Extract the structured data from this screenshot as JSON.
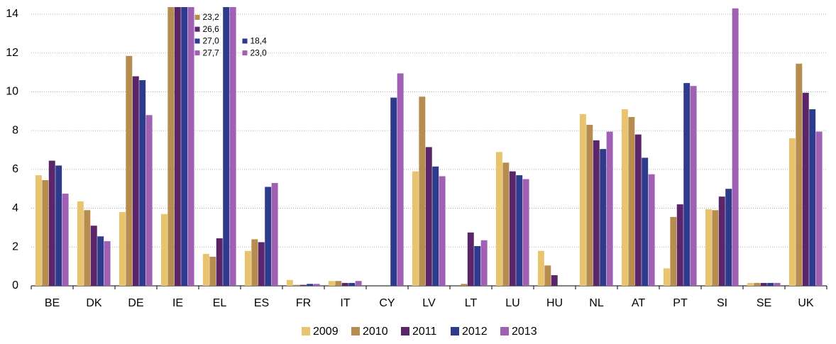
{
  "chart_data": {
    "type": "bar",
    "categories": [
      "BE",
      "DK",
      "DE",
      "IE",
      "EL",
      "ES",
      "FR",
      "IT",
      "CY",
      "LV",
      "LT",
      "LU",
      "HU",
      "NL",
      "AT",
      "PT",
      "SI",
      "SE",
      "UK"
    ],
    "series": [
      {
        "name": "2009",
        "color": "#e8c46e",
        "values": [
          5.7,
          4.35,
          3.8,
          3.7,
          1.65,
          1.8,
          0.3,
          0.25,
          0,
          5.9,
          0,
          6.9,
          1.8,
          8.85,
          9.1,
          0.9,
          3.95,
          0.15,
          7.6
        ]
      },
      {
        "name": "2010",
        "color": "#b78c4f",
        "values": [
          5.45,
          3.9,
          11.85,
          23.2,
          1.5,
          2.4,
          0.05,
          0.25,
          0,
          9.75,
          0.1,
          6.35,
          1.05,
          8.3,
          8.7,
          3.55,
          3.9,
          0.15,
          11.45
        ],
        "value_labels": [
          null,
          null,
          null,
          "23,2",
          null,
          null,
          null,
          null,
          null,
          null,
          null,
          null,
          null,
          null,
          null,
          null,
          null,
          null,
          null
        ]
      },
      {
        "name": "2011",
        "color": "#5b2569",
        "values": [
          6.45,
          3.1,
          10.8,
          26.6,
          2.45,
          2.25,
          0.05,
          0.15,
          0,
          7.15,
          2.75,
          5.9,
          0.55,
          7.5,
          7.8,
          4.2,
          4.6,
          0.15,
          9.95
        ],
        "value_labels": [
          null,
          null,
          null,
          "26,6",
          null,
          null,
          null,
          null,
          null,
          null,
          null,
          null,
          null,
          null,
          null,
          null,
          null,
          null,
          null
        ]
      },
      {
        "name": "2012",
        "color": "#2e3a8c",
        "values": [
          6.2,
          2.55,
          10.6,
          27.0,
          18.4,
          5.1,
          0.1,
          0.15,
          9.7,
          6.15,
          2.05,
          5.7,
          0,
          7.05,
          6.6,
          10.45,
          5.0,
          0.15,
          9.1
        ],
        "value_labels": [
          null,
          null,
          null,
          "27,0",
          "18,4",
          null,
          null,
          null,
          null,
          null,
          null,
          null,
          null,
          null,
          null,
          null,
          null,
          null,
          null
        ]
      },
      {
        "name": "2013",
        "color": "#a061b5",
        "values": [
          4.75,
          2.3,
          8.8,
          27.7,
          23.0,
          5.3,
          0.1,
          0.25,
          10.95,
          5.65,
          2.35,
          5.5,
          0,
          7.95,
          5.75,
          10.3,
          14.3,
          0.15,
          7.95
        ],
        "value_labels": [
          null,
          null,
          null,
          "27,7",
          "23,0",
          null,
          null,
          null,
          null,
          null,
          null,
          null,
          null,
          null,
          null,
          null,
          null,
          null,
          null
        ]
      }
    ],
    "ylim": [
      0,
      14
    ],
    "yticks": [
      0,
      2,
      4,
      6,
      8,
      10,
      12,
      14
    ],
    "grid": true
  }
}
